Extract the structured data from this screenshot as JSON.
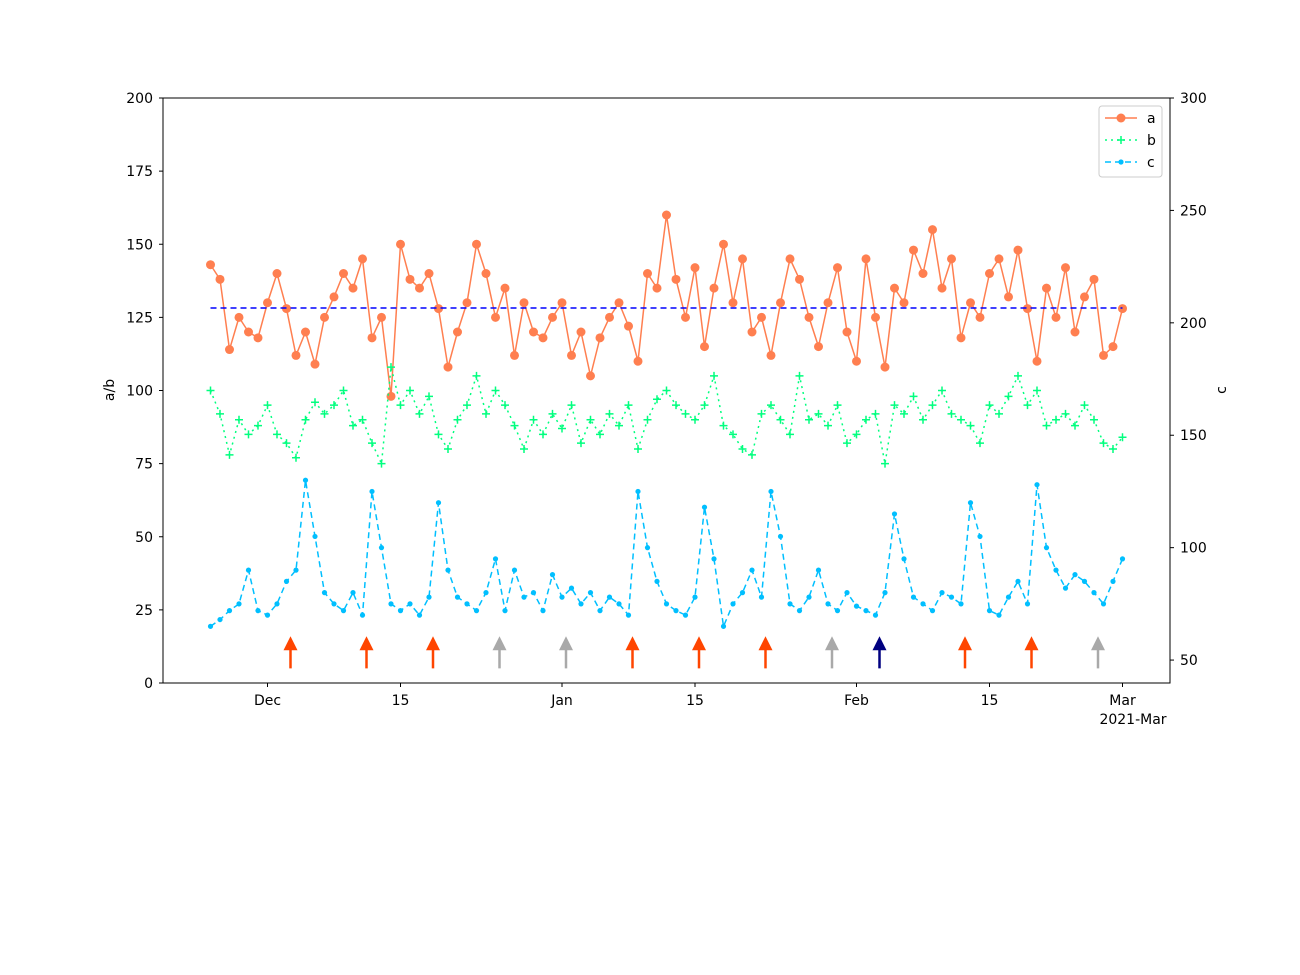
{
  "chart_data": {
    "type": "line",
    "x_start": "2020-11-25",
    "x_step_days": 1,
    "xlim": [
      "2020-11-20",
      "2021-03-06"
    ],
    "x_ticks": [
      {
        "date": "2020-12-01",
        "label": "Dec"
      },
      {
        "date": "2020-12-15",
        "label": "15"
      },
      {
        "date": "2021-01-01",
        "label": "Jan"
      },
      {
        "date": "2021-01-15",
        "label": "15"
      },
      {
        "date": "2021-02-01",
        "label": "Feb"
      },
      {
        "date": "2021-02-15",
        "label": "15"
      },
      {
        "date": "2021-03-01",
        "label": "Mar"
      }
    ],
    "x_offset_label": "2021-Mar",
    "ylabel_left": "a/b",
    "ylabel_right": "c",
    "ylim_left": [
      0,
      200
    ],
    "ylim_right": [
      39.8,
      300
    ],
    "yticks_left": [
      "0",
      "25",
      "50",
      "75",
      "100",
      "125",
      "150",
      "175",
      "200"
    ],
    "yticks_right": [
      "50",
      "100",
      "150",
      "200",
      "250",
      "300"
    ],
    "grid": false,
    "legend": {
      "placement": "top-right",
      "entries": [
        "a",
        "b",
        "c"
      ]
    },
    "series": [
      {
        "name": "a",
        "axis": "left",
        "color": "#ff7f50",
        "style": "solid",
        "marker": "circle",
        "values": [
          143,
          138,
          114,
          125,
          120,
          118,
          130,
          140,
          128,
          112,
          120,
          109,
          125,
          132,
          140,
          135,
          145,
          118,
          125,
          98,
          150,
          138,
          135,
          140,
          128,
          108,
          120,
          130,
          150,
          140,
          125,
          135,
          112,
          130,
          120,
          118,
          125,
          130,
          112,
          120,
          105,
          118,
          125,
          130,
          122,
          110,
          140,
          135,
          160,
          138,
          125,
          142,
          115,
          135,
          150,
          130,
          145,
          120,
          125,
          112,
          130,
          145,
          138,
          125,
          115,
          130,
          142,
          120,
          110,
          145,
          125,
          108,
          135,
          130,
          148,
          140,
          155,
          135,
          145,
          118,
          130,
          125,
          140,
          145,
          132,
          148,
          128,
          110,
          135,
          125,
          142,
          120,
          132,
          138,
          112,
          115,
          128
        ]
      },
      {
        "name": "b",
        "axis": "left",
        "color": "#00ff7f",
        "style": "dotted",
        "marker": "plus",
        "values": [
          100,
          92,
          78,
          90,
          85,
          88,
          95,
          85,
          82,
          77,
          90,
          96,
          92,
          95,
          100,
          88,
          90,
          82,
          75,
          108,
          95,
          100,
          92,
          98,
          85,
          80,
          90,
          95,
          105,
          92,
          100,
          95,
          88,
          80,
          90,
          85,
          92,
          87,
          95,
          82,
          90,
          85,
          92,
          88,
          95,
          80,
          90,
          97,
          100,
          95,
          92,
          90,
          95,
          105,
          88,
          85,
          80,
          78,
          92,
          95,
          90,
          85,
          105,
          90,
          92,
          88,
          95,
          82,
          85,
          90,
          92,
          75,
          95,
          92,
          98,
          90,
          95,
          100,
          92,
          90,
          88,
          82,
          95,
          92,
          98,
          105,
          95,
          100,
          88,
          90,
          92,
          88,
          95,
          90,
          82,
          80,
          84
        ]
      },
      {
        "name": "c",
        "axis": "right",
        "color": "#00bfff",
        "style": "dashed",
        "marker": "dot",
        "values": [
          65,
          68,
          72,
          75,
          90,
          72,
          70,
          75,
          85,
          90,
          130,
          105,
          80,
          75,
          72,
          80,
          70,
          125,
          100,
          75,
          72,
          75,
          70,
          78,
          120,
          90,
          78,
          75,
          72,
          80,
          95,
          72,
          90,
          78,
          80,
          72,
          88,
          78,
          82,
          75,
          80,
          72,
          78,
          75,
          70,
          125,
          100,
          85,
          75,
          72,
          70,
          78,
          118,
          95,
          65,
          75,
          80,
          90,
          78,
          125,
          105,
          75,
          72,
          78,
          90,
          75,
          72,
          80,
          74,
          72,
          70,
          80,
          115,
          95,
          78,
          75,
          72,
          80,
          78,
          75,
          120,
          105,
          72,
          70,
          78,
          85,
          75,
          128,
          100,
          90,
          82,
          88,
          85,
          80,
          75,
          85,
          95
        ]
      }
    ],
    "mean_line": {
      "value": 128.2,
      "color": "#0000ff",
      "style": "dashed"
    },
    "arrows": [
      {
        "date": "2020-12-03",
        "color": "#ff4500"
      },
      {
        "date": "2020-12-11",
        "color": "#ff4500"
      },
      {
        "date": "2020-12-18",
        "color": "#ff4500"
      },
      {
        "date": "2020-12-25",
        "color": "#a9a9a9"
      },
      {
        "date": "2021-01-01",
        "color": "#a9a9a9"
      },
      {
        "date": "2021-01-08",
        "color": "#ff4500"
      },
      {
        "date": "2021-01-15",
        "color": "#ff4500"
      },
      {
        "date": "2021-01-22",
        "color": "#ff4500"
      },
      {
        "date": "2021-01-29",
        "color": "#a9a9a9"
      },
      {
        "date": "2021-02-03",
        "color": "#000080"
      },
      {
        "date": "2021-02-12",
        "color": "#ff4500"
      },
      {
        "date": "2021-02-19",
        "color": "#ff4500"
      },
      {
        "date": "2021-02-26",
        "color": "#a9a9a9"
      }
    ],
    "arrow_y_range": [
      5,
      16
    ]
  }
}
